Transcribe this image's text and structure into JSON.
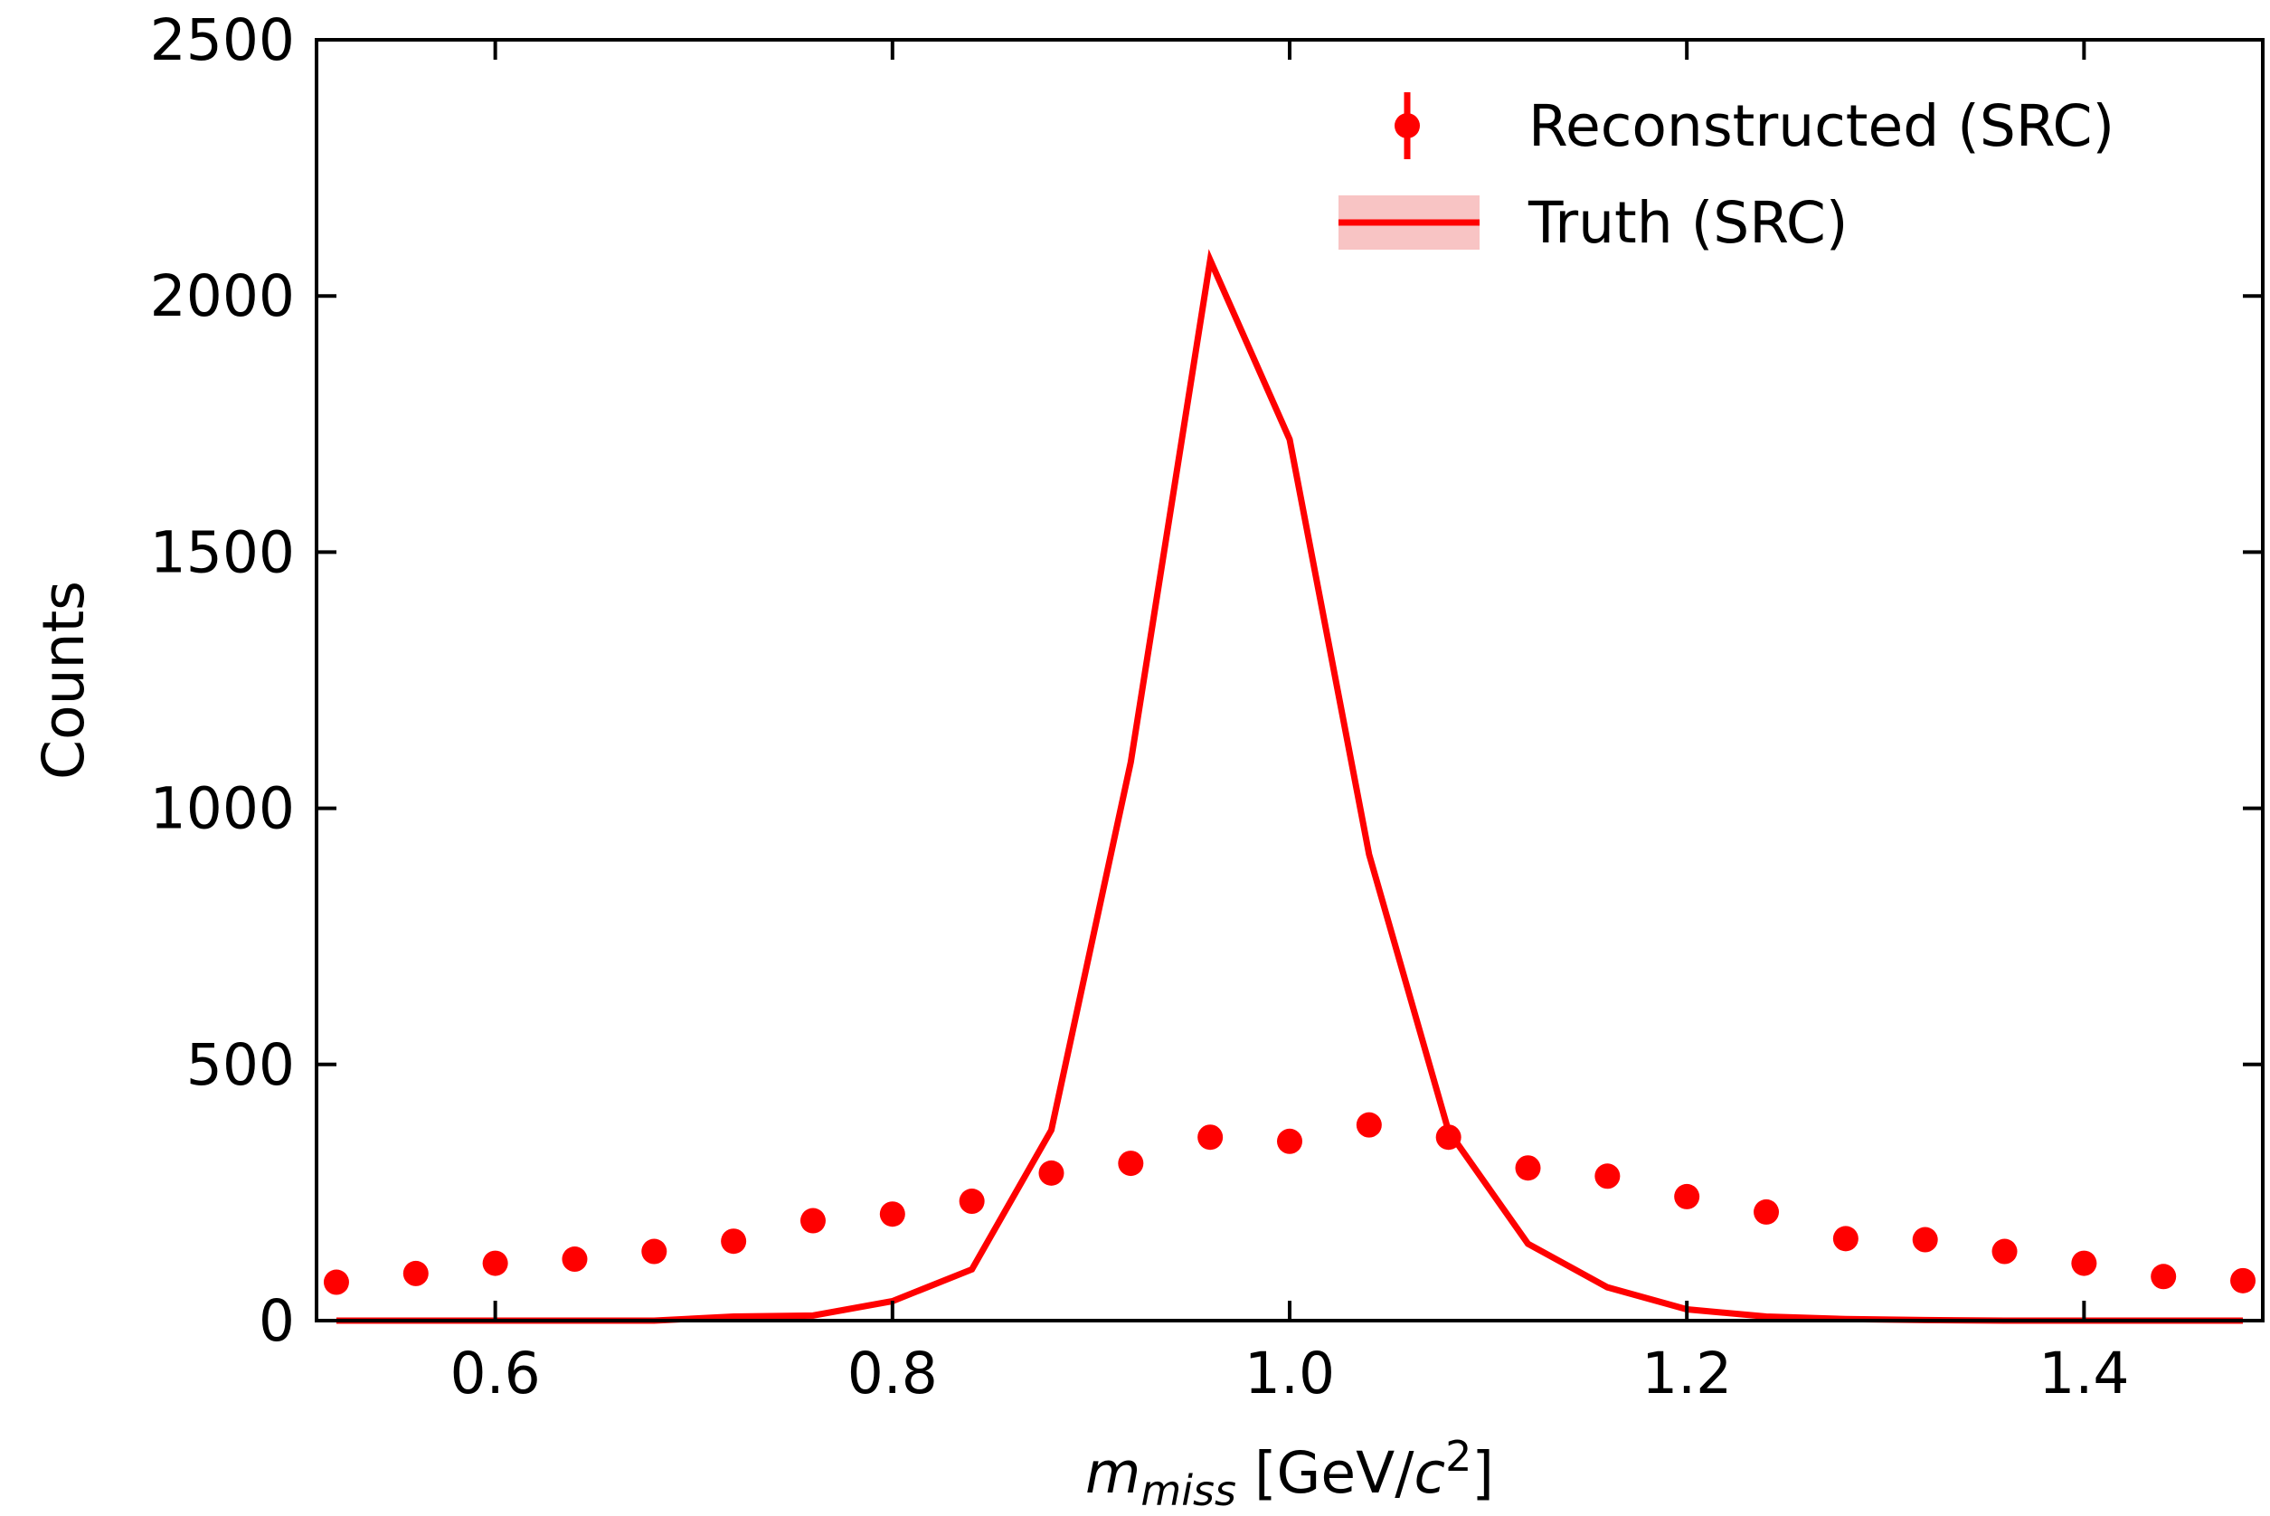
{
  "chart_data": {
    "type": "scatter",
    "title": "",
    "xlabel_var": "m",
    "xlabel_sub": "miss",
    "xlabel_unit_prefix": "[GeV/",
    "xlabel_unit_var": "c",
    "xlabel_unit_exp": "2",
    "xlabel_unit_suffix": "]",
    "ylabel": "Counts",
    "xlim": [
      0.51,
      1.49
    ],
    "ylim": [
      0,
      2500
    ],
    "xticks": [
      0.6,
      0.8,
      1.0,
      1.2,
      1.4
    ],
    "xtick_labels": [
      "0.6",
      "0.8",
      "1.0",
      "1.2",
      "1.4"
    ],
    "yticks": [
      0,
      500,
      1000,
      1500,
      2000,
      2500
    ],
    "ytick_labels": [
      "0",
      "500",
      "1000",
      "1500",
      "2000",
      "2500"
    ],
    "grid": false,
    "legend_position": "top-right",
    "series": [
      {
        "name": "Reconstructed (SRC)",
        "kind": "points-with-errorbars",
        "color": "#ff0000",
        "x": [
          0.52,
          0.56,
          0.6,
          0.64,
          0.68,
          0.72,
          0.76,
          0.8,
          0.84,
          0.88,
          0.92,
          0.96,
          1.0,
          1.04,
          1.08,
          1.12,
          1.16,
          1.2,
          1.24,
          1.28,
          1.32,
          1.36,
          1.4,
          1.44,
          1.48
        ],
        "y": [
          75,
          92,
          112,
          120,
          135,
          155,
          195,
          208,
          233,
          288,
          307,
          358,
          350,
          382,
          358,
          298,
          282,
          242,
          212,
          160,
          158,
          135,
          112,
          86,
          78
        ]
      },
      {
        "name": "Truth (SRC)",
        "kind": "line-with-band",
        "color": "#ff0000",
        "band_color": "#f8c4c4",
        "x": [
          0.52,
          0.56,
          0.6,
          0.64,
          0.68,
          0.72,
          0.76,
          0.8,
          0.84,
          0.88,
          0.92,
          0.96,
          1.0,
          1.04,
          1.08,
          1.12,
          1.16,
          1.2,
          1.24,
          1.28,
          1.32,
          1.36,
          1.4,
          1.44,
          1.48
        ],
        "y": [
          0,
          0,
          0,
          0,
          0,
          8,
          10,
          38,
          100,
          372,
          1090,
          2070,
          1720,
          910,
          370,
          150,
          65,
          22,
          8,
          3,
          1,
          0,
          0,
          0,
          0
        ]
      }
    ]
  }
}
